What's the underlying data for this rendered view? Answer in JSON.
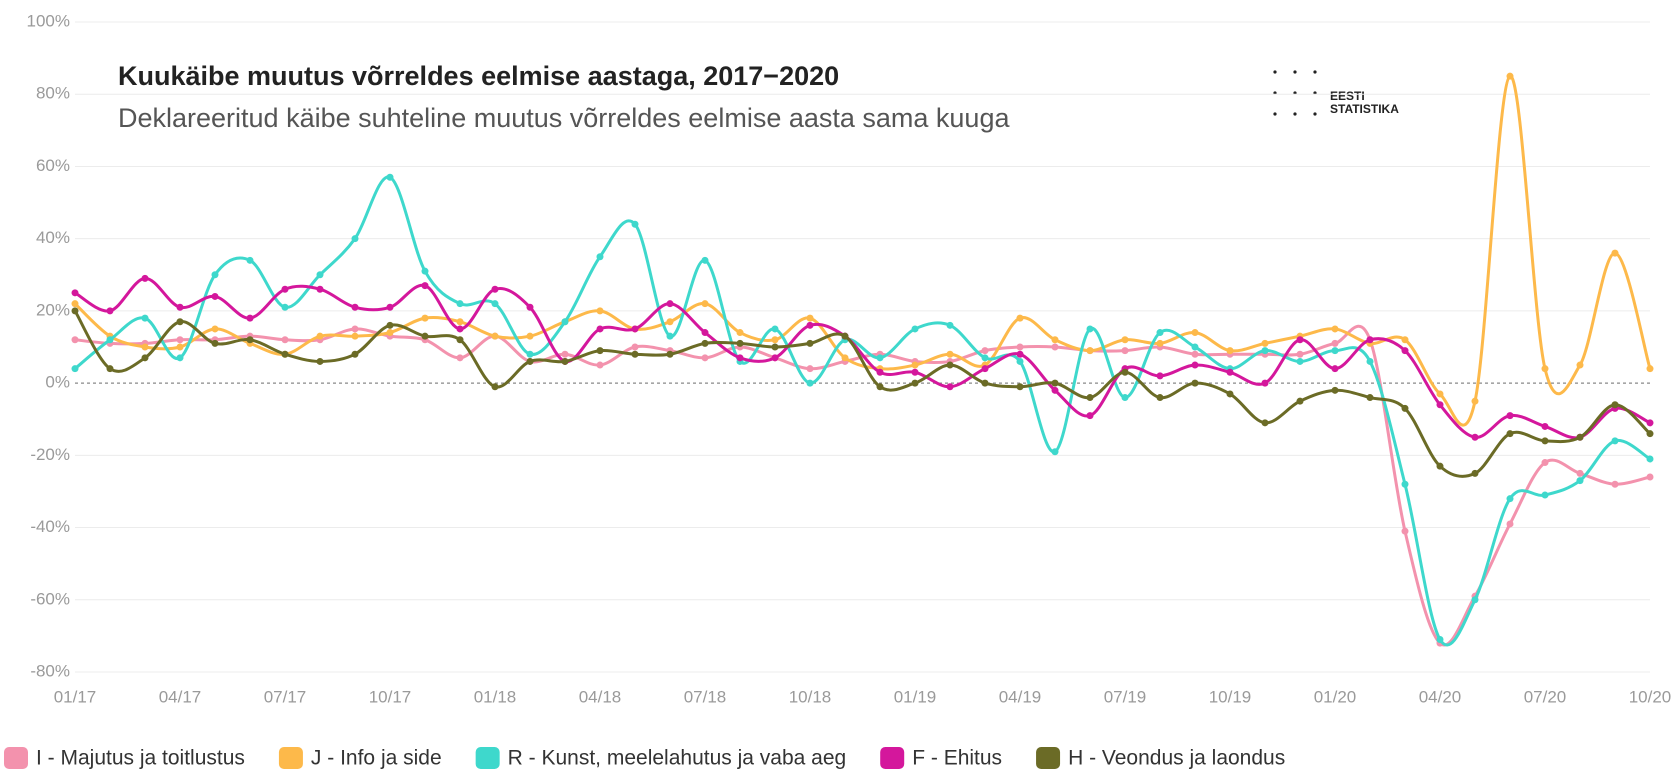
{
  "chart_data": {
    "type": "line",
    "title": "Kuukäibe muutus võrreldes eelmise aastaga, 2017−2020",
    "subtitle": "Deklareeritud käibe suhteline muutus võrreldes eelmise aasta sama kuuga",
    "logo": [
      "EESTI",
      "STATISTIKA"
    ],
    "categories": [
      "01/17",
      null,
      null,
      "04/17",
      null,
      null,
      "07/17",
      null,
      null,
      "10/17",
      null,
      null,
      "01/18",
      null,
      null,
      "04/18",
      null,
      null,
      "07/18",
      null,
      null,
      "10/18",
      null,
      null,
      "01/19",
      null,
      null,
      "04/19",
      null,
      null,
      "07/19",
      null,
      null,
      "10/19",
      null,
      null,
      "01/20",
      null,
      null,
      "04/20",
      null,
      null,
      "07/20",
      null,
      null,
      "10/20"
    ],
    "ylim": [
      -80,
      100
    ],
    "yticks": [
      {
        "value": -80,
        "label": "-80%"
      },
      {
        "value": -60,
        "label": "-60%"
      },
      {
        "value": -40,
        "label": "-40%"
      },
      {
        "value": -20,
        "label": "-20%"
      },
      {
        "value": 0,
        "label": "0%"
      },
      {
        "value": 20,
        "label": "20%"
      },
      {
        "value": 40,
        "label": "40%"
      },
      {
        "value": 60,
        "label": "60%"
      },
      {
        "value": 80,
        "label": "80%"
      },
      {
        "value": 100,
        "label": "100%"
      }
    ],
    "grid": true,
    "legend": "bottom",
    "series": [
      {
        "name": "I - Majutus ja toitlustus",
        "color": "#f392ad",
        "values": [
          12,
          11,
          11,
          12,
          12,
          13,
          12,
          12,
          15,
          13,
          12,
          7,
          13,
          6,
          8,
          5,
          10,
          9,
          7,
          10,
          7,
          4,
          6,
          8,
          6,
          6,
          9,
          10,
          10,
          9,
          9,
          10,
          8,
          8,
          8,
          8,
          11,
          12,
          -41,
          -72,
          -59,
          -39,
          -22,
          -25,
          -28,
          -26
        ]
      },
      {
        "name": "J - Info ja side",
        "color": "#fdb94a",
        "values": [
          22,
          13,
          10,
          10,
          15,
          11,
          8,
          13,
          13,
          14,
          18,
          17,
          13,
          13,
          17,
          20,
          15,
          17,
          22,
          14,
          12,
          18,
          7,
          4,
          5,
          8,
          5,
          18,
          12,
          9,
          12,
          11,
          14,
          9,
          11,
          13,
          15,
          11,
          12,
          -3,
          -5,
          85,
          4,
          5,
          36,
          4
        ]
      },
      {
        "name": "R - Kunst, meelelahutus ja vaba aeg",
        "color": "#3ed8cc",
        "values": [
          4,
          12,
          18,
          7,
          30,
          34,
          21,
          30,
          40,
          57,
          31,
          22,
          22,
          8,
          17,
          35,
          44,
          13,
          34,
          6,
          15,
          0,
          12,
          7,
          15,
          16,
          7,
          6,
          -19,
          15,
          -4,
          14,
          10,
          4,
          9,
          6,
          9,
          6,
          -28,
          -71,
          -60,
          -32,
          -31,
          -27,
          -16,
          -21
        ]
      },
      {
        "name": "F - Ehitus",
        "color": "#d4179c",
        "values": [
          25,
          20,
          29,
          21,
          24,
          18,
          26,
          26,
          21,
          21,
          27,
          15,
          26,
          21,
          6,
          15,
          15,
          22,
          14,
          7,
          7,
          16,
          13,
          3,
          3,
          -1,
          4,
          8,
          -2,
          -9,
          4,
          2,
          5,
          3,
          0,
          12,
          4,
          12,
          9,
          -6,
          -15,
          -9,
          -12,
          -15,
          -7,
          -11
        ]
      },
      {
        "name": "H - Veondus ja laondus",
        "color": "#6b6b26",
        "values": [
          20,
          4,
          7,
          17,
          11,
          12,
          8,
          6,
          8,
          16,
          13,
          12,
          -1,
          6,
          6,
          9,
          8,
          8,
          11,
          11,
          10,
          11,
          13,
          -1,
          0,
          5,
          0,
          -1,
          0,
          -4,
          3,
          -4,
          0,
          -3,
          -11,
          -5,
          -2,
          -4,
          -7,
          -23,
          -25,
          -14,
          -16,
          -15,
          -6,
          -14
        ]
      }
    ]
  }
}
